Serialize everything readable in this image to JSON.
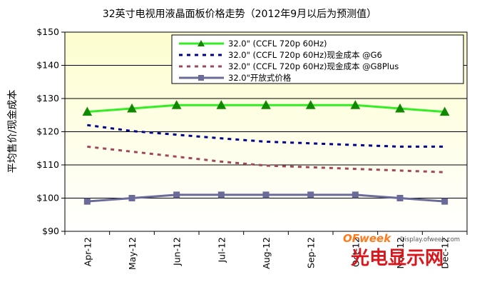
{
  "chart_data": {
    "type": "line",
    "title": "32英寸电视用液晶面板价格走势（2012年9月以后为预测值）",
    "xlabel": "",
    "ylabel": "平均售价/现金成本",
    "categories": [
      "Apr-12",
      "May-12",
      "Jun-12",
      "Jul-12",
      "Aug-12",
      "Sep-12",
      "Oct-12",
      "Nov-12",
      "Dec-12"
    ],
    "ylim": [
      90,
      150
    ],
    "yticks": [
      "$90",
      "$100",
      "$110",
      "$120",
      "$130",
      "$140",
      "$150"
    ],
    "ytick_values": [
      90,
      100,
      110,
      120,
      130,
      140,
      150
    ],
    "grid": true,
    "legend_position": "top-right",
    "series": [
      {
        "name": "32.0\" (CCFL 720p 60Hz)",
        "color": "#33ee22",
        "marker": "triangle",
        "marker_color": "#118800",
        "style": "solid",
        "values": [
          126,
          127,
          128,
          128,
          128,
          128,
          128,
          127,
          126
        ]
      },
      {
        "name": "32.0\" (CCFL 720p 60Hz)现金成本 @G6",
        "color": "#00008b",
        "marker": "none",
        "style": "dashed",
        "values": [
          122,
          120.2,
          119.1,
          118,
          117,
          116.5,
          116,
          115.5,
          115.5
        ]
      },
      {
        "name": "32.0\" (CCFL 720p 60Hz)现金成本 @G8Plus",
        "color": "#a0485a",
        "marker": "none",
        "style": "dashed",
        "values": [
          115.5,
          114,
          112.5,
          111,
          109.8,
          109.3,
          108.8,
          108.3,
          107.8
        ]
      },
      {
        "name": "32.0\"开放式价格",
        "color": "#6b6b9a",
        "marker": "square",
        "marker_color": "#6b6b9a",
        "style": "solid",
        "values": [
          99,
          100,
          101,
          101,
          101,
          101,
          101,
          100,
          99
        ]
      }
    ]
  },
  "watermark": {
    "brand": "OFweek",
    "site": "Display.ofweek.com",
    "cn_name": "光电显示网"
  }
}
